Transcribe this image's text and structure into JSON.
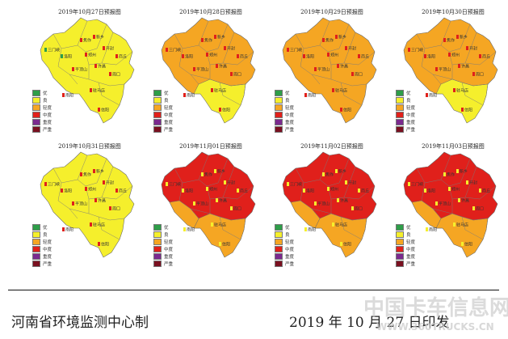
{
  "legend": [
    {
      "label": "优",
      "color": "#2e9e49"
    },
    {
      "label": "良",
      "color": "#f5ef2c"
    },
    {
      "label": "轻度",
      "color": "#f5a623"
    },
    {
      "label": "中度",
      "color": "#e0201b"
    },
    {
      "label": "重度",
      "color": "#7b2a8f"
    },
    {
      "label": "严重",
      "color": "#7a1020"
    }
  ],
  "cities": [
    "三门峡",
    "洛阳",
    "焦作",
    "新乡",
    "郑州",
    "开封",
    "许昌",
    "平顶山",
    "周口",
    "商丘",
    "驻马店",
    "南阳",
    "信阳"
  ],
  "panels": [
    {
      "title": "2019年10月27日预报图",
      "fill": "#f5ef2c",
      "west_level": "优",
      "heavy": false
    },
    {
      "title": "2019年10月28日预报图",
      "fill": "#f5a623",
      "south_fill": "#f5ef2c",
      "heavy": false
    },
    {
      "title": "2019年10月29日预报图",
      "fill": "#f5a623",
      "heavy": false
    },
    {
      "title": "2019年10月30日预报图",
      "fill": "#f5a623",
      "south_fill": "#f5ef2c",
      "heavy": false
    },
    {
      "title": "2019年10月31日预报图",
      "fill": "#f5ef2c",
      "heavy": false
    },
    {
      "title": "2019年11月01日预报图",
      "fill": "#e0201b",
      "south_fill": "#f5a623",
      "heavy": true
    },
    {
      "title": "2019年11月02日预报图",
      "fill": "#e0201b",
      "south_fill": "#f5a623",
      "heavy": true
    },
    {
      "title": "2019年11月03日预报图",
      "fill": "#e0201b",
      "south_fill": "#f5a623",
      "heavy": true
    }
  ],
  "footer": {
    "left": "河南省环境监测中心制",
    "right": "2019 年 10 月 27 日印发"
  },
  "watermark": {
    "cn": "中国卡车信息网",
    "en": "WWW.360TRUCKS.CN"
  }
}
